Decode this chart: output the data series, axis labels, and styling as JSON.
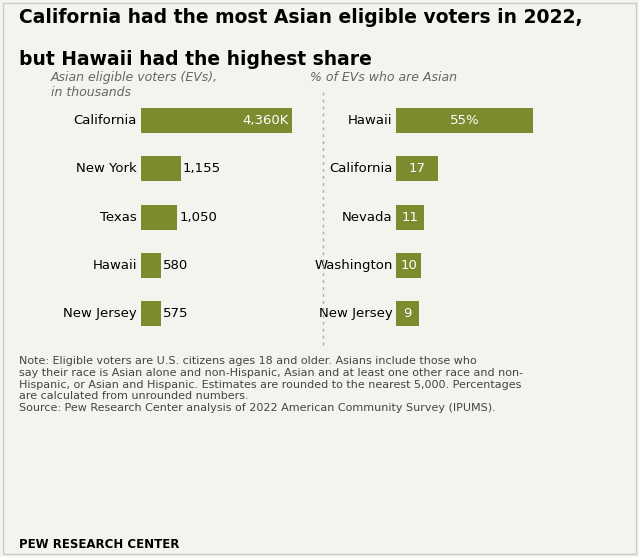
{
  "title_line1": "California had the most Asian eligible voters in 2022,",
  "title_line2": "but Hawaii had the highest share",
  "left_subtitle": "Asian eligible voters (EVs),\nin thousands",
  "right_subtitle": "% of EVs who are Asian",
  "left_states": [
    "California",
    "New York",
    "Texas",
    "Hawaii",
    "New Jersey"
  ],
  "left_values": [
    4360,
    1155,
    1050,
    580,
    575
  ],
  "left_labels": [
    "4,360K",
    "1,155",
    "1,050",
    "580",
    "575"
  ],
  "left_label_inside": [
    true,
    false,
    false,
    false,
    false
  ],
  "right_states": [
    "Hawaii",
    "California",
    "Nevada",
    "Washington",
    "New Jersey"
  ],
  "right_values": [
    55,
    17,
    11,
    10,
    9
  ],
  "right_labels": [
    "55%",
    "17",
    "11",
    "10",
    "9"
  ],
  "bar_color": "#7a8c2e",
  "bar_color_light": "#8fa030",
  "background_color": "#f5f3ee",
  "text_color": "#222222",
  "note_color": "#444444",
  "subtitle_color": "#666666",
  "divider_color": "#aaaaaa",
  "title_fontsize": 13.5,
  "subtitle_fontsize": 9.0,
  "bar_label_fontsize": 9.5,
  "state_label_fontsize": 9.5,
  "note_fontsize": 8.0,
  "source_fontsize": 8.5,
  "note_text": "Note: Eligible voters are U.S. citizens ages 18 and older. Asians include those who\nsay their race is Asian alone and non-Hispanic, Asian and at least one other race and non-\nHispanic, or Asian and Hispanic. Estimates are rounded to the nearest 5,000. Percentages\nare calculated from unrounded numbers.\nSource: Pew Research Center analysis of 2022 American Community Survey (IPUMS).",
  "source_label": "PEW RESEARCH CENTER"
}
